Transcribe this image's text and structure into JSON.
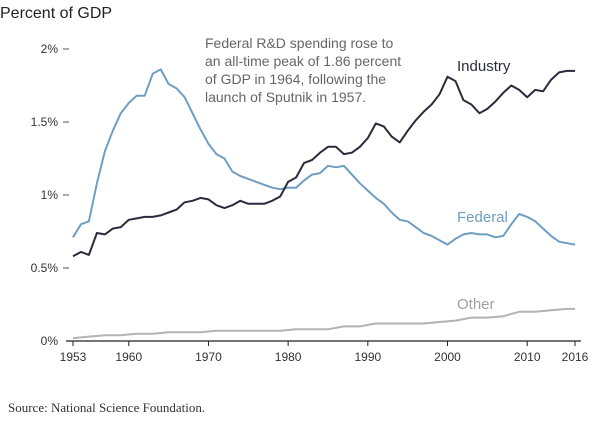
{
  "chart_data": {
    "type": "line",
    "ylabel": "Percent of GDP",
    "xlim": [
      1953,
      2016
    ],
    "ylim": [
      0,
      2.1
    ],
    "x_ticks": [
      {
        "value": 1953,
        "label": "1953"
      },
      {
        "value": 1960,
        "label": "1960"
      },
      {
        "value": 1970,
        "label": "1970"
      },
      {
        "value": 1980,
        "label": "1980"
      },
      {
        "value": 1990,
        "label": "1990"
      },
      {
        "value": 2000,
        "label": "2000"
      },
      {
        "value": 2010,
        "label": "2010"
      },
      {
        "value": 2016,
        "label": "2016"
      }
    ],
    "y_ticks": [
      {
        "value": 0,
        "label": "0%"
      },
      {
        "value": 0.5,
        "label": "0.5%"
      },
      {
        "value": 1,
        "label": "1%"
      },
      {
        "value": 1.5,
        "label": "1.5%"
      },
      {
        "value": 2,
        "label": "2%"
      }
    ],
    "annotation": [
      "Federal R&D spending rose to",
      "an all-time peak of 1.86 percent",
      "of GDP in 1964, following the",
      "launch of Sputnik in 1957."
    ],
    "series": [
      {
        "name": "Industry",
        "color": "#2a2b3d",
        "x": [
          1953,
          1954,
          1955,
          1956,
          1957,
          1958,
          1959,
          1960,
          1961,
          1962,
          1963,
          1964,
          1965,
          1966,
          1967,
          1968,
          1969,
          1970,
          1971,
          1972,
          1973,
          1974,
          1975,
          1976,
          1977,
          1978,
          1979,
          1980,
          1981,
          1982,
          1983,
          1984,
          1985,
          1986,
          1987,
          1988,
          1989,
          1990,
          1991,
          1992,
          1993,
          1994,
          1995,
          1996,
          1997,
          1998,
          1999,
          2000,
          2001,
          2002,
          2003,
          2004,
          2005,
          2006,
          2007,
          2008,
          2009,
          2010,
          2011,
          2012,
          2013,
          2014,
          2015,
          2016
        ],
        "values": [
          0.58,
          0.61,
          0.59,
          0.74,
          0.73,
          0.77,
          0.78,
          0.83,
          0.84,
          0.85,
          0.85,
          0.86,
          0.88,
          0.9,
          0.95,
          0.96,
          0.98,
          0.97,
          0.93,
          0.91,
          0.93,
          0.96,
          0.94,
          0.94,
          0.94,
          0.96,
          0.99,
          1.09,
          1.12,
          1.22,
          1.24,
          1.29,
          1.33,
          1.33,
          1.28,
          1.29,
          1.33,
          1.39,
          1.49,
          1.47,
          1.4,
          1.36,
          1.44,
          1.51,
          1.57,
          1.62,
          1.69,
          1.81,
          1.78,
          1.65,
          1.62,
          1.56,
          1.59,
          1.64,
          1.7,
          1.75,
          1.72,
          1.67,
          1.72,
          1.71,
          1.79,
          1.84,
          1.85,
          1.85
        ]
      },
      {
        "name": "Federal",
        "color": "#6f9ec3",
        "x": [
          1953,
          1954,
          1955,
          1956,
          1957,
          1958,
          1959,
          1960,
          1961,
          1962,
          1963,
          1964,
          1965,
          1966,
          1967,
          1968,
          1969,
          1970,
          1971,
          1972,
          1973,
          1974,
          1975,
          1976,
          1977,
          1978,
          1979,
          1980,
          1981,
          1982,
          1983,
          1984,
          1985,
          1986,
          1987,
          1988,
          1989,
          1990,
          1991,
          1992,
          1993,
          1994,
          1995,
          1996,
          1997,
          1998,
          1999,
          2000,
          2001,
          2002,
          2003,
          2004,
          2005,
          2006,
          2007,
          2008,
          2009,
          2010,
          2011,
          2012,
          2013,
          2014,
          2015,
          2016
        ],
        "values": [
          0.71,
          0.8,
          0.82,
          1.08,
          1.3,
          1.44,
          1.56,
          1.63,
          1.68,
          1.68,
          1.83,
          1.86,
          1.76,
          1.73,
          1.67,
          1.56,
          1.45,
          1.35,
          1.28,
          1.25,
          1.16,
          1.13,
          1.11,
          1.09,
          1.07,
          1.05,
          1.04,
          1.05,
          1.05,
          1.1,
          1.14,
          1.15,
          1.2,
          1.19,
          1.2,
          1.14,
          1.08,
          1.03,
          0.98,
          0.94,
          0.88,
          0.83,
          0.82,
          0.78,
          0.74,
          0.72,
          0.69,
          0.66,
          0.7,
          0.73,
          0.74,
          0.73,
          0.73,
          0.71,
          0.72,
          0.8,
          0.87,
          0.85,
          0.82,
          0.77,
          0.72,
          0.68,
          0.67,
          0.66
        ]
      },
      {
        "name": "Other",
        "color": "#b3b3b3",
        "x": [
          1953,
          1955,
          1957,
          1959,
          1961,
          1963,
          1965,
          1967,
          1969,
          1971,
          1973,
          1975,
          1977,
          1979,
          1981,
          1983,
          1985,
          1987,
          1989,
          1991,
          1993,
          1995,
          1997,
          1999,
          2001,
          2003,
          2005,
          2007,
          2009,
          2011,
          2013,
          2015,
          2016
        ],
        "values": [
          0.02,
          0.03,
          0.04,
          0.04,
          0.05,
          0.05,
          0.06,
          0.06,
          0.06,
          0.07,
          0.07,
          0.07,
          0.07,
          0.07,
          0.08,
          0.08,
          0.08,
          0.1,
          0.1,
          0.12,
          0.12,
          0.12,
          0.12,
          0.13,
          0.14,
          0.16,
          0.16,
          0.17,
          0.2,
          0.2,
          0.21,
          0.22,
          0.22
        ]
      }
    ]
  },
  "source": "Source: National Science Foundation."
}
